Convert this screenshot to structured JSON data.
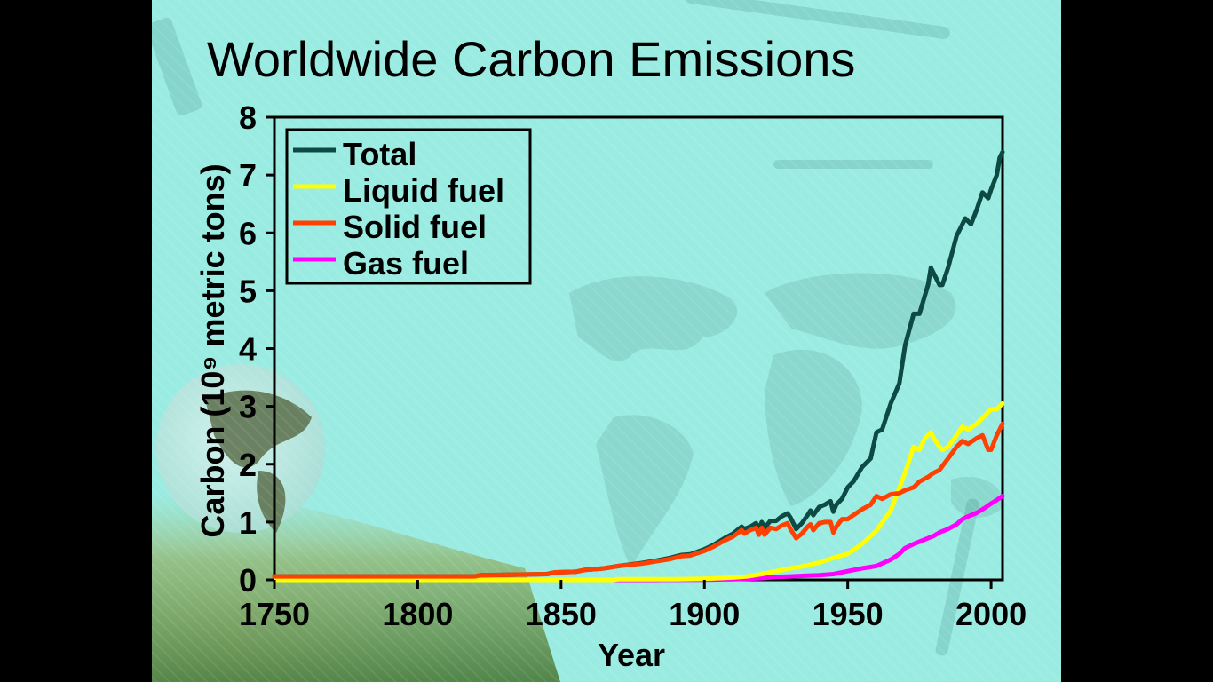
{
  "slide": {
    "title": "Worldwide Carbon Emissions",
    "background_color": "#9aece2"
  },
  "chart_data": {
    "type": "line",
    "title": "Worldwide Carbon Emissions",
    "xlabel": "Year",
    "ylabel": "Carbon (10⁹ metric tons)",
    "xlim": [
      1750,
      2004
    ],
    "ylim": [
      0,
      8
    ],
    "x_ticks": [
      1750,
      1800,
      1850,
      1900,
      1950,
      2000
    ],
    "y_ticks": [
      0,
      1,
      2,
      3,
      4,
      5,
      6,
      7,
      8
    ],
    "grid": false,
    "legend_position": "top-left",
    "series": [
      {
        "name": "Total",
        "color": "#0d4a44",
        "points": [
          [
            1750,
            0.06
          ],
          [
            1820,
            0.06
          ],
          [
            1822,
            0.08
          ],
          [
            1845,
            0.1
          ],
          [
            1848,
            0.13
          ],
          [
            1855,
            0.14
          ],
          [
            1858,
            0.17
          ],
          [
            1865,
            0.2
          ],
          [
            1870,
            0.24
          ],
          [
            1878,
            0.29
          ],
          [
            1883,
            0.33
          ],
          [
            1888,
            0.38
          ],
          [
            1892,
            0.43
          ],
          [
            1895,
            0.44
          ],
          [
            1900,
            0.53
          ],
          [
            1903,
            0.6
          ],
          [
            1907,
            0.72
          ],
          [
            1910,
            0.8
          ],
          [
            1913,
            0.92
          ],
          [
            1914,
            0.88
          ],
          [
            1916,
            0.92
          ],
          [
            1918,
            0.98
          ],
          [
            1919,
            0.88
          ],
          [
            1920,
            1.0
          ],
          [
            1921,
            0.9
          ],
          [
            1923,
            1.02
          ],
          [
            1925,
            1.02
          ],
          [
            1927,
            1.1
          ],
          [
            1929,
            1.15
          ],
          [
            1930,
            1.08
          ],
          [
            1932,
            0.88
          ],
          [
            1934,
            0.98
          ],
          [
            1936,
            1.12
          ],
          [
            1937,
            1.2
          ],
          [
            1938,
            1.12
          ],
          [
            1940,
            1.26
          ],
          [
            1942,
            1.3
          ],
          [
            1944,
            1.36
          ],
          [
            1945,
            1.18
          ],
          [
            1946,
            1.3
          ],
          [
            1948,
            1.4
          ],
          [
            1950,
            1.6
          ],
          [
            1952,
            1.7
          ],
          [
            1955,
            1.95
          ],
          [
            1958,
            2.1
          ],
          [
            1960,
            2.55
          ],
          [
            1962,
            2.6
          ],
          [
            1965,
            3.05
          ],
          [
            1968,
            3.4
          ],
          [
            1970,
            4.05
          ],
          [
            1973,
            4.6
          ],
          [
            1975,
            4.6
          ],
          [
            1978,
            5.1
          ],
          [
            1979,
            5.4
          ],
          [
            1980,
            5.3
          ],
          [
            1982,
            5.1
          ],
          [
            1983,
            5.1
          ],
          [
            1985,
            5.4
          ],
          [
            1988,
            5.95
          ],
          [
            1990,
            6.15
          ],
          [
            1991,
            6.25
          ],
          [
            1993,
            6.15
          ],
          [
            1995,
            6.4
          ],
          [
            1997,
            6.7
          ],
          [
            1999,
            6.6
          ],
          [
            2000,
            6.75
          ],
          [
            2002,
            7.0
          ],
          [
            2003,
            7.3
          ],
          [
            2004,
            7.4
          ]
        ]
      },
      {
        "name": "Liquid fuel",
        "color": "#ffff00",
        "points": [
          [
            1750,
            0.0
          ],
          [
            1868,
            0.0
          ],
          [
            1870,
            0.01
          ],
          [
            1890,
            0.01
          ],
          [
            1900,
            0.02
          ],
          [
            1910,
            0.04
          ],
          [
            1915,
            0.06
          ],
          [
            1920,
            0.1
          ],
          [
            1925,
            0.15
          ],
          [
            1930,
            0.2
          ],
          [
            1935,
            0.24
          ],
          [
            1940,
            0.3
          ],
          [
            1945,
            0.38
          ],
          [
            1950,
            0.45
          ],
          [
            1955,
            0.62
          ],
          [
            1960,
            0.85
          ],
          [
            1965,
            1.2
          ],
          [
            1970,
            1.85
          ],
          [
            1973,
            2.3
          ],
          [
            1975,
            2.25
          ],
          [
            1977,
            2.45
          ],
          [
            1979,
            2.55
          ],
          [
            1980,
            2.45
          ],
          [
            1982,
            2.3
          ],
          [
            1983,
            2.25
          ],
          [
            1985,
            2.3
          ],
          [
            1988,
            2.5
          ],
          [
            1990,
            2.65
          ],
          [
            1992,
            2.6
          ],
          [
            1995,
            2.7
          ],
          [
            1998,
            2.85
          ],
          [
            2000,
            2.95
          ],
          [
            2002,
            2.95
          ],
          [
            2004,
            3.05
          ]
        ]
      },
      {
        "name": "Solid fuel",
        "color": "#ff4000",
        "points": [
          [
            1750,
            0.06
          ],
          [
            1820,
            0.06
          ],
          [
            1822,
            0.08
          ],
          [
            1845,
            0.1
          ],
          [
            1848,
            0.13
          ],
          [
            1855,
            0.14
          ],
          [
            1858,
            0.17
          ],
          [
            1865,
            0.2
          ],
          [
            1870,
            0.24
          ],
          [
            1878,
            0.28
          ],
          [
            1883,
            0.32
          ],
          [
            1888,
            0.36
          ],
          [
            1892,
            0.41
          ],
          [
            1895,
            0.42
          ],
          [
            1900,
            0.5
          ],
          [
            1903,
            0.57
          ],
          [
            1907,
            0.68
          ],
          [
            1910,
            0.75
          ],
          [
            1913,
            0.86
          ],
          [
            1914,
            0.8
          ],
          [
            1916,
            0.86
          ],
          [
            1918,
            0.9
          ],
          [
            1919,
            0.78
          ],
          [
            1920,
            0.9
          ],
          [
            1921,
            0.78
          ],
          [
            1923,
            0.9
          ],
          [
            1925,
            0.88
          ],
          [
            1927,
            0.94
          ],
          [
            1929,
            0.98
          ],
          [
            1930,
            0.88
          ],
          [
            1932,
            0.72
          ],
          [
            1934,
            0.8
          ],
          [
            1936,
            0.92
          ],
          [
            1937,
            0.96
          ],
          [
            1938,
            0.86
          ],
          [
            1940,
            0.98
          ],
          [
            1942,
            1.0
          ],
          [
            1944,
            1.0
          ],
          [
            1945,
            0.82
          ],
          [
            1946,
            0.92
          ],
          [
            1948,
            1.05
          ],
          [
            1950,
            1.05
          ],
          [
            1952,
            1.12
          ],
          [
            1955,
            1.22
          ],
          [
            1958,
            1.3
          ],
          [
            1960,
            1.45
          ],
          [
            1962,
            1.4
          ],
          [
            1965,
            1.48
          ],
          [
            1968,
            1.5
          ],
          [
            1970,
            1.55
          ],
          [
            1973,
            1.6
          ],
          [
            1975,
            1.7
          ],
          [
            1978,
            1.78
          ],
          [
            1980,
            1.85
          ],
          [
            1982,
            1.9
          ],
          [
            1985,
            2.1
          ],
          [
            1988,
            2.3
          ],
          [
            1990,
            2.4
          ],
          [
            1992,
            2.35
          ],
          [
            1995,
            2.45
          ],
          [
            1997,
            2.5
          ],
          [
            1999,
            2.25
          ],
          [
            2000,
            2.25
          ],
          [
            2002,
            2.5
          ],
          [
            2004,
            2.7
          ]
        ]
      },
      {
        "name": "Gas fuel",
        "color": "#ff00ff",
        "points": [
          [
            1750,
            0.0
          ],
          [
            1884,
            0.0
          ],
          [
            1885,
            0.002
          ],
          [
            1900,
            0.005
          ],
          [
            1910,
            0.01
          ],
          [
            1915,
            0.02
          ],
          [
            1920,
            0.03
          ],
          [
            1925,
            0.05
          ],
          [
            1930,
            0.06
          ],
          [
            1935,
            0.07
          ],
          [
            1940,
            0.08
          ],
          [
            1945,
            0.1
          ],
          [
            1950,
            0.15
          ],
          [
            1955,
            0.2
          ],
          [
            1960,
            0.24
          ],
          [
            1965,
            0.35
          ],
          [
            1968,
            0.45
          ],
          [
            1970,
            0.55
          ],
          [
            1973,
            0.62
          ],
          [
            1975,
            0.66
          ],
          [
            1978,
            0.72
          ],
          [
            1980,
            0.76
          ],
          [
            1982,
            0.82
          ],
          [
            1985,
            0.88
          ],
          [
            1988,
            0.96
          ],
          [
            1990,
            1.05
          ],
          [
            1992,
            1.1
          ],
          [
            1995,
            1.16
          ],
          [
            1998,
            1.25
          ],
          [
            2000,
            1.32
          ],
          [
            2002,
            1.38
          ],
          [
            2004,
            1.45
          ]
        ]
      }
    ]
  }
}
